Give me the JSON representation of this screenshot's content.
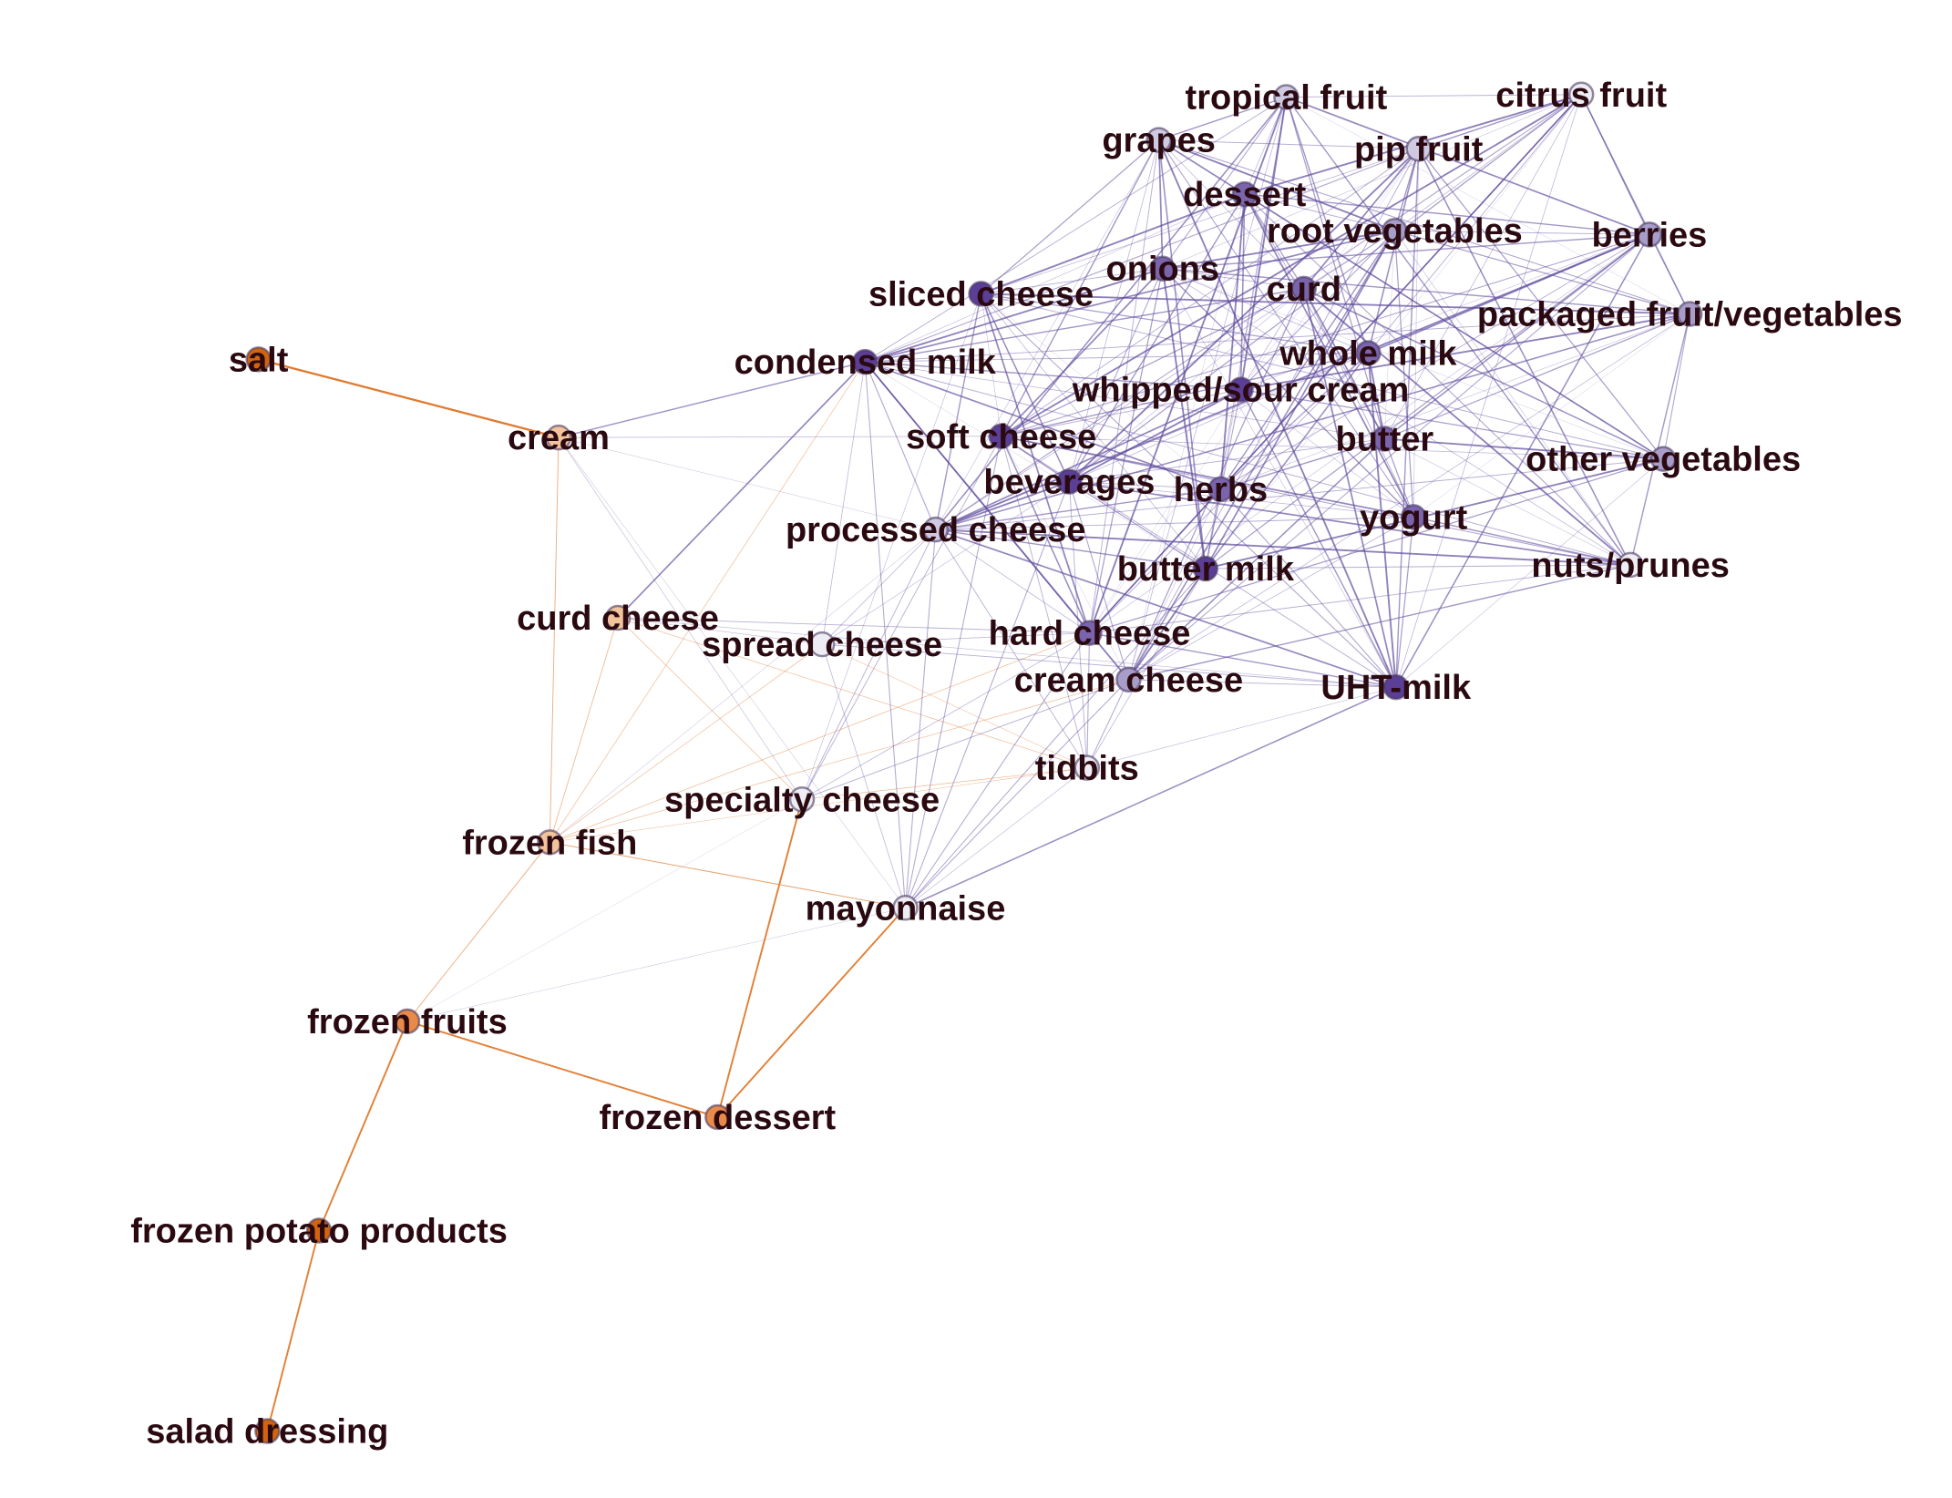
{
  "colors": {
    "dark_purple": "#5b3e95",
    "purple": "#7a65ad",
    "mid_purple": "#a79dc8",
    "light_purple": "#cfc9e2",
    "pale": "#eeedf4",
    "light_orange": "#f3c39c",
    "orange": "#e88a4a",
    "dark_orange": "#d2640f",
    "purple_edge": "#5e4a9c",
    "orange_edge": "#e07a2e",
    "label": "#2a0a10"
  },
  "nodes": [
    {
      "id": "tropical_fruit",
      "label": "tropical fruit",
      "color": "light_purple"
    },
    {
      "id": "citrus_fruit",
      "label": "citrus fruit",
      "color": "pale"
    },
    {
      "id": "grapes",
      "label": "grapes",
      "color": "light_purple"
    },
    {
      "id": "pip_fruit",
      "label": "pip fruit",
      "color": "light_purple"
    },
    {
      "id": "dessert",
      "label": "dessert",
      "color": "purple"
    },
    {
      "id": "root_vegetables",
      "label": "root vegetables",
      "color": "mid_purple"
    },
    {
      "id": "berries",
      "label": "berries",
      "color": "mid_purple"
    },
    {
      "id": "sliced_cheese",
      "label": "sliced cheese",
      "color": "dark_purple"
    },
    {
      "id": "onions",
      "label": "onions",
      "color": "purple"
    },
    {
      "id": "curd",
      "label": "curd",
      "color": "purple"
    },
    {
      "id": "packaged_fruit",
      "label": "packaged fruit/vegetables",
      "color": "mid_purple"
    },
    {
      "id": "salt",
      "label": "salt",
      "color": "dark_orange"
    },
    {
      "id": "condensed_milk",
      "label": "condensed milk",
      "color": "dark_purple"
    },
    {
      "id": "whole_milk",
      "label": "whole milk",
      "color": "purple"
    },
    {
      "id": "whipped_sour_cream",
      "label": "whipped/sour cream",
      "color": "dark_purple"
    },
    {
      "id": "cream",
      "label": "cream",
      "color": "light_orange"
    },
    {
      "id": "soft_cheese",
      "label": "soft cheese",
      "color": "dark_purple"
    },
    {
      "id": "butter",
      "label": "butter",
      "color": "purple"
    },
    {
      "id": "beverages",
      "label": "beverages",
      "color": "dark_purple"
    },
    {
      "id": "herbs",
      "label": "herbs",
      "color": "purple"
    },
    {
      "id": "other_vegetables",
      "label": "other vegetables",
      "color": "mid_purple"
    },
    {
      "id": "processed_cheese",
      "label": "processed cheese",
      "color": "light_purple"
    },
    {
      "id": "yogurt",
      "label": "yogurt",
      "color": "purple"
    },
    {
      "id": "butter_milk",
      "label": "butter milk",
      "color": "dark_purple"
    },
    {
      "id": "nuts_prunes",
      "label": "nuts/prunes",
      "color": "pale"
    },
    {
      "id": "curd_cheese",
      "label": "curd cheese",
      "color": "light_orange"
    },
    {
      "id": "spread_cheese",
      "label": "spread cheese",
      "color": "pale"
    },
    {
      "id": "hard_cheese",
      "label": "hard cheese",
      "color": "purple"
    },
    {
      "id": "cream_cheese",
      "label": "cream cheese",
      "color": "mid_purple"
    },
    {
      "id": "uht_milk",
      "label": "UHT-milk",
      "color": "dark_purple"
    },
    {
      "id": "tidbits",
      "label": "tidbits",
      "color": "pale"
    },
    {
      "id": "specialty_cheese",
      "label": "specialty cheese",
      "color": "pale"
    },
    {
      "id": "frozen_fish",
      "label": "frozen fish",
      "color": "light_orange"
    },
    {
      "id": "mayonnaise",
      "label": "mayonnaise",
      "color": "pale"
    },
    {
      "id": "frozen_fruits",
      "label": "frozen fruits",
      "color": "orange"
    },
    {
      "id": "frozen_dessert",
      "label": "frozen dessert",
      "color": "orange"
    },
    {
      "id": "frozen_potato_products",
      "label": "frozen potato products",
      "color": "dark_orange"
    },
    {
      "id": "salad_dressing",
      "label": "salad dressing",
      "color": "dark_orange"
    }
  ]
}
